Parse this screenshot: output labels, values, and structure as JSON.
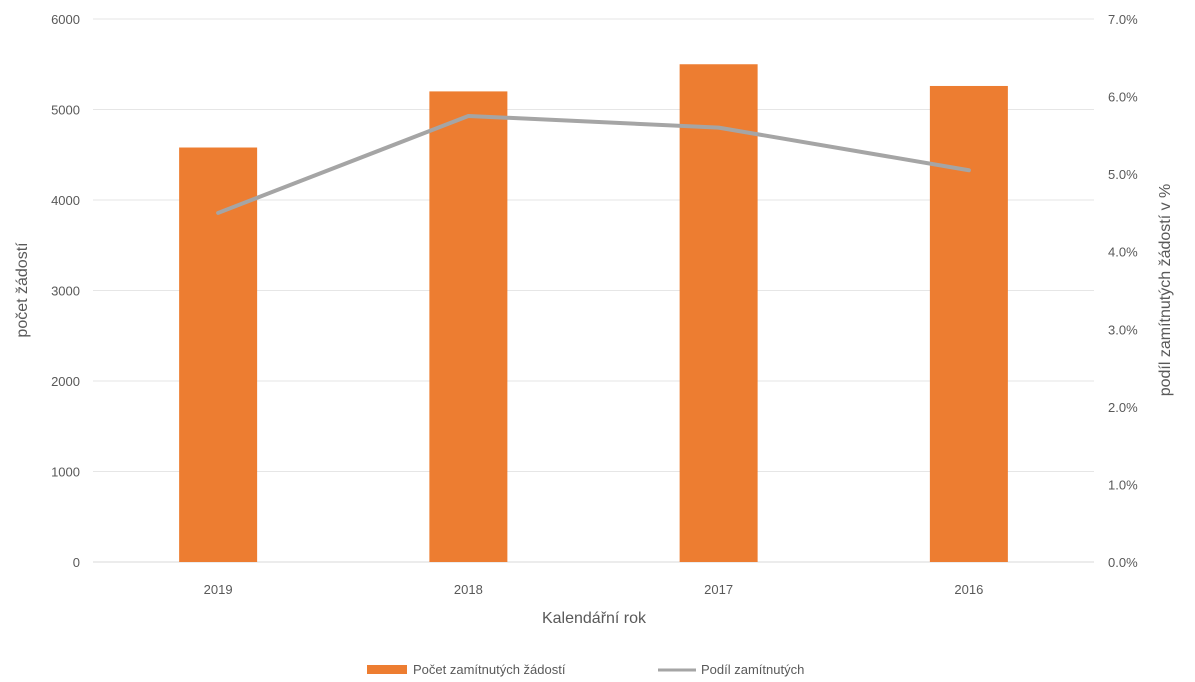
{
  "chart_data": {
    "type": "bar",
    "categories": [
      "2019",
      "2018",
      "2017",
      "2016"
    ],
    "series": [
      {
        "name": "Počet zamítnutých žádostí",
        "type": "bar",
        "axis": "left",
        "color": "#ED7D31",
        "values": [
          4580,
          5200,
          5500,
          5260
        ]
      },
      {
        "name": "Podíl zamítnutých",
        "type": "line",
        "axis": "right",
        "color": "#A5A5A5",
        "values": [
          0.045,
          0.0575,
          0.056,
          0.0505
        ]
      }
    ],
    "xlabel": "Kalendářní rok",
    "ylabel": "počet žádostí",
    "y2label": "podíl zamítnutých žádostí v %",
    "ylim": [
      0,
      6000
    ],
    "y2lim": [
      0,
      0.07
    ],
    "yticks": [
      "0",
      "1000",
      "2000",
      "3000",
      "4000",
      "5000",
      "6000"
    ],
    "y2ticks": [
      "0.0%",
      "1.0%",
      "2.0%",
      "3.0%",
      "4.0%",
      "5.0%",
      "6.0%",
      "7.0%"
    ],
    "grid": true,
    "legend_position": "bottom"
  }
}
